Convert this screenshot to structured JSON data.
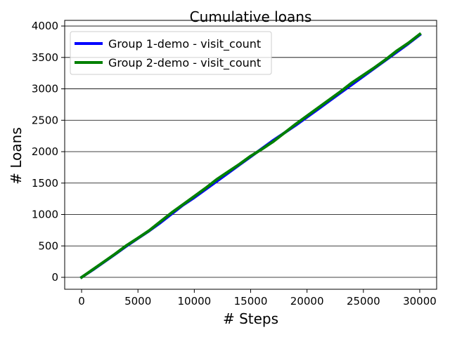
{
  "chart_data": {
    "type": "line",
    "title": "Cumulative loans",
    "xlabel": "# Steps",
    "ylabel": "# Loans",
    "xlim": [
      -1500,
      31500
    ],
    "ylim": [
      -190,
      4090
    ],
    "x_ticks": [
      0,
      5000,
      10000,
      15000,
      20000,
      25000,
      30000
    ],
    "y_ticks": [
      0,
      500,
      1000,
      1500,
      2000,
      2500,
      3000,
      3500,
      4000
    ],
    "grid": "horizontal",
    "legend_position": "top-left",
    "series": [
      {
        "name": "Group 1-demo - visit_count",
        "color": "#0000ff",
        "x": [
          0,
          1000,
          2000,
          3000,
          4000,
          5000,
          6000,
          7000,
          8000,
          9000,
          10000,
          11000,
          12000,
          13000,
          14000,
          15000,
          16000,
          17000,
          18000,
          19000,
          20000,
          21000,
          22000,
          23000,
          24000,
          25000,
          26000,
          27000,
          28000,
          29000,
          30000
        ],
        "y": [
          0,
          120,
          245,
          370,
          500,
          620,
          740,
          870,
          1010,
          1150,
          1270,
          1400,
          1530,
          1660,
          1790,
          1920,
          2050,
          2180,
          2300,
          2420,
          2550,
          2680,
          2810,
          2940,
          3070,
          3200,
          3330,
          3460,
          3590,
          3720,
          3860
        ]
      },
      {
        "name": "Group 2-demo - visit_count",
        "color": "#008000",
        "x": [
          0,
          1000,
          2000,
          3000,
          4000,
          5000,
          6000,
          7000,
          8000,
          9000,
          10000,
          11000,
          12000,
          13000,
          14000,
          15000,
          16000,
          17000,
          18000,
          19000,
          20000,
          21000,
          22000,
          23000,
          24000,
          25000,
          26000,
          27000,
          28000,
          29000,
          30000
        ],
        "y": [
          0,
          125,
          250,
          375,
          510,
          625,
          745,
          890,
          1030,
          1160,
          1290,
          1420,
          1560,
          1680,
          1800,
          1930,
          2040,
          2160,
          2300,
          2440,
          2570,
          2700,
          2830,
          2960,
          3100,
          3220,
          3340,
          3470,
          3610,
          3730,
          3870
        ]
      }
    ]
  }
}
